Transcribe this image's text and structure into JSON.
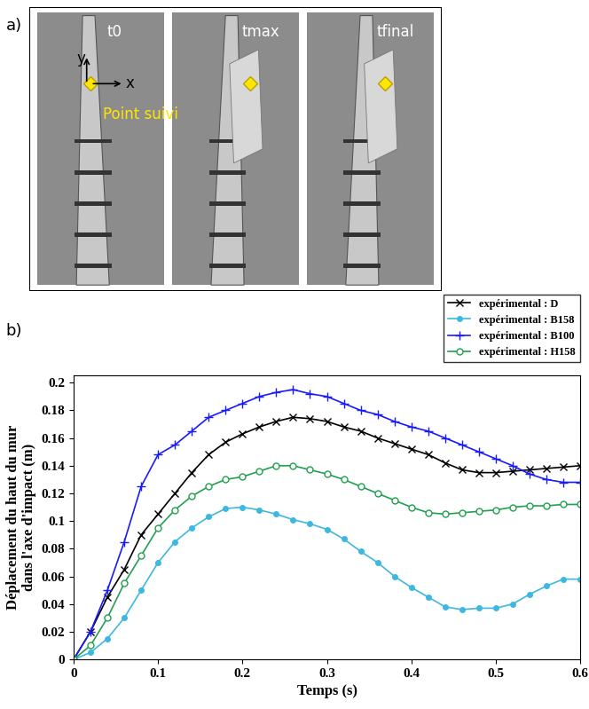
{
  "chart_data": {
    "type": "line",
    "x_label": "Temps (s)",
    "y_label": "Déplacement du haut du mur\ndans l'axe d'impact (m)",
    "x": [
      0,
      0.02,
      0.04,
      0.06,
      0.08,
      0.1,
      0.12,
      0.14,
      0.16,
      0.18,
      0.2,
      0.22,
      0.24,
      0.26,
      0.28,
      0.3,
      0.32,
      0.34,
      0.36,
      0.38,
      0.4,
      0.42,
      0.44,
      0.46,
      0.48,
      0.5,
      0.52,
      0.54,
      0.56,
      0.58,
      0.6
    ],
    "series": [
      {
        "name": "expérimental : D",
        "color": "#000000",
        "marker": "x",
        "line_style": "solid",
        "values": [
          0,
          0.02,
          0.045,
          0.065,
          0.09,
          0.105,
          0.12,
          0.135,
          0.148,
          0.157,
          0.163,
          0.168,
          0.172,
          0.175,
          0.174,
          0.172,
          0.168,
          0.165,
          0.16,
          0.156,
          0.152,
          0.148,
          0.142,
          0.137,
          0.135,
          0.135,
          0.136,
          0.137,
          0.138,
          0.139,
          0.14
        ]
      },
      {
        "name": "expérimental : B158",
        "color": "#3db8e0",
        "marker": "filled_circle",
        "line_style": "solid",
        "values": [
          0,
          0.005,
          0.015,
          0.03,
          0.05,
          0.07,
          0.085,
          0.095,
          0.103,
          0.109,
          0.11,
          0.108,
          0.105,
          0.101,
          0.098,
          0.094,
          0.087,
          0.078,
          0.07,
          0.06,
          0.052,
          0.045,
          0.038,
          0.036,
          0.037,
          0.037,
          0.04,
          0.047,
          0.053,
          0.058,
          0.058
        ]
      },
      {
        "name": "expérimental : B100",
        "color": "#1a1aff",
        "marker": "plus",
        "line_style": "solid",
        "values": [
          0,
          0.02,
          0.05,
          0.085,
          0.125,
          0.148,
          0.155,
          0.165,
          0.175,
          0.18,
          0.185,
          0.19,
          0.193,
          0.195,
          0.192,
          0.19,
          0.185,
          0.18,
          0.177,
          0.172,
          0.168,
          0.165,
          0.16,
          0.155,
          0.15,
          0.145,
          0.14,
          0.134,
          0.13,
          0.128,
          0.128
        ]
      },
      {
        "name": "expérimental : H158",
        "color": "#22a050",
        "marker": "open_circle",
        "line_style": "solid",
        "values": [
          0,
          0.01,
          0.03,
          0.055,
          0.075,
          0.095,
          0.108,
          0.118,
          0.125,
          0.13,
          0.132,
          0.136,
          0.14,
          0.14,
          0.137,
          0.134,
          0.13,
          0.125,
          0.12,
          0.115,
          0.11,
          0.106,
          0.105,
          0.106,
          0.107,
          0.108,
          0.11,
          0.111,
          0.111,
          0.112,
          0.112
        ]
      }
    ],
    "xlim": [
      0,
      0.6
    ],
    "xticks": [
      0,
      0.1,
      0.2,
      0.3,
      0.4,
      0.5,
      0.6
    ],
    "ylim": [
      0,
      0.205
    ],
    "yticks": [
      0,
      0.02,
      0.04,
      0.06,
      0.08,
      0.1,
      0.12,
      0.14,
      0.16,
      0.18,
      0.2
    ],
    "grid": false,
    "legend": "upper right"
  },
  "photo_panel": {
    "frames": [
      "t0",
      "tmax",
      "tfinal"
    ],
    "axis_labels": [
      "x",
      "y"
    ],
    "point_label": "Point suivi"
  },
  "panel_labels": [
    "a)",
    "b)"
  ]
}
